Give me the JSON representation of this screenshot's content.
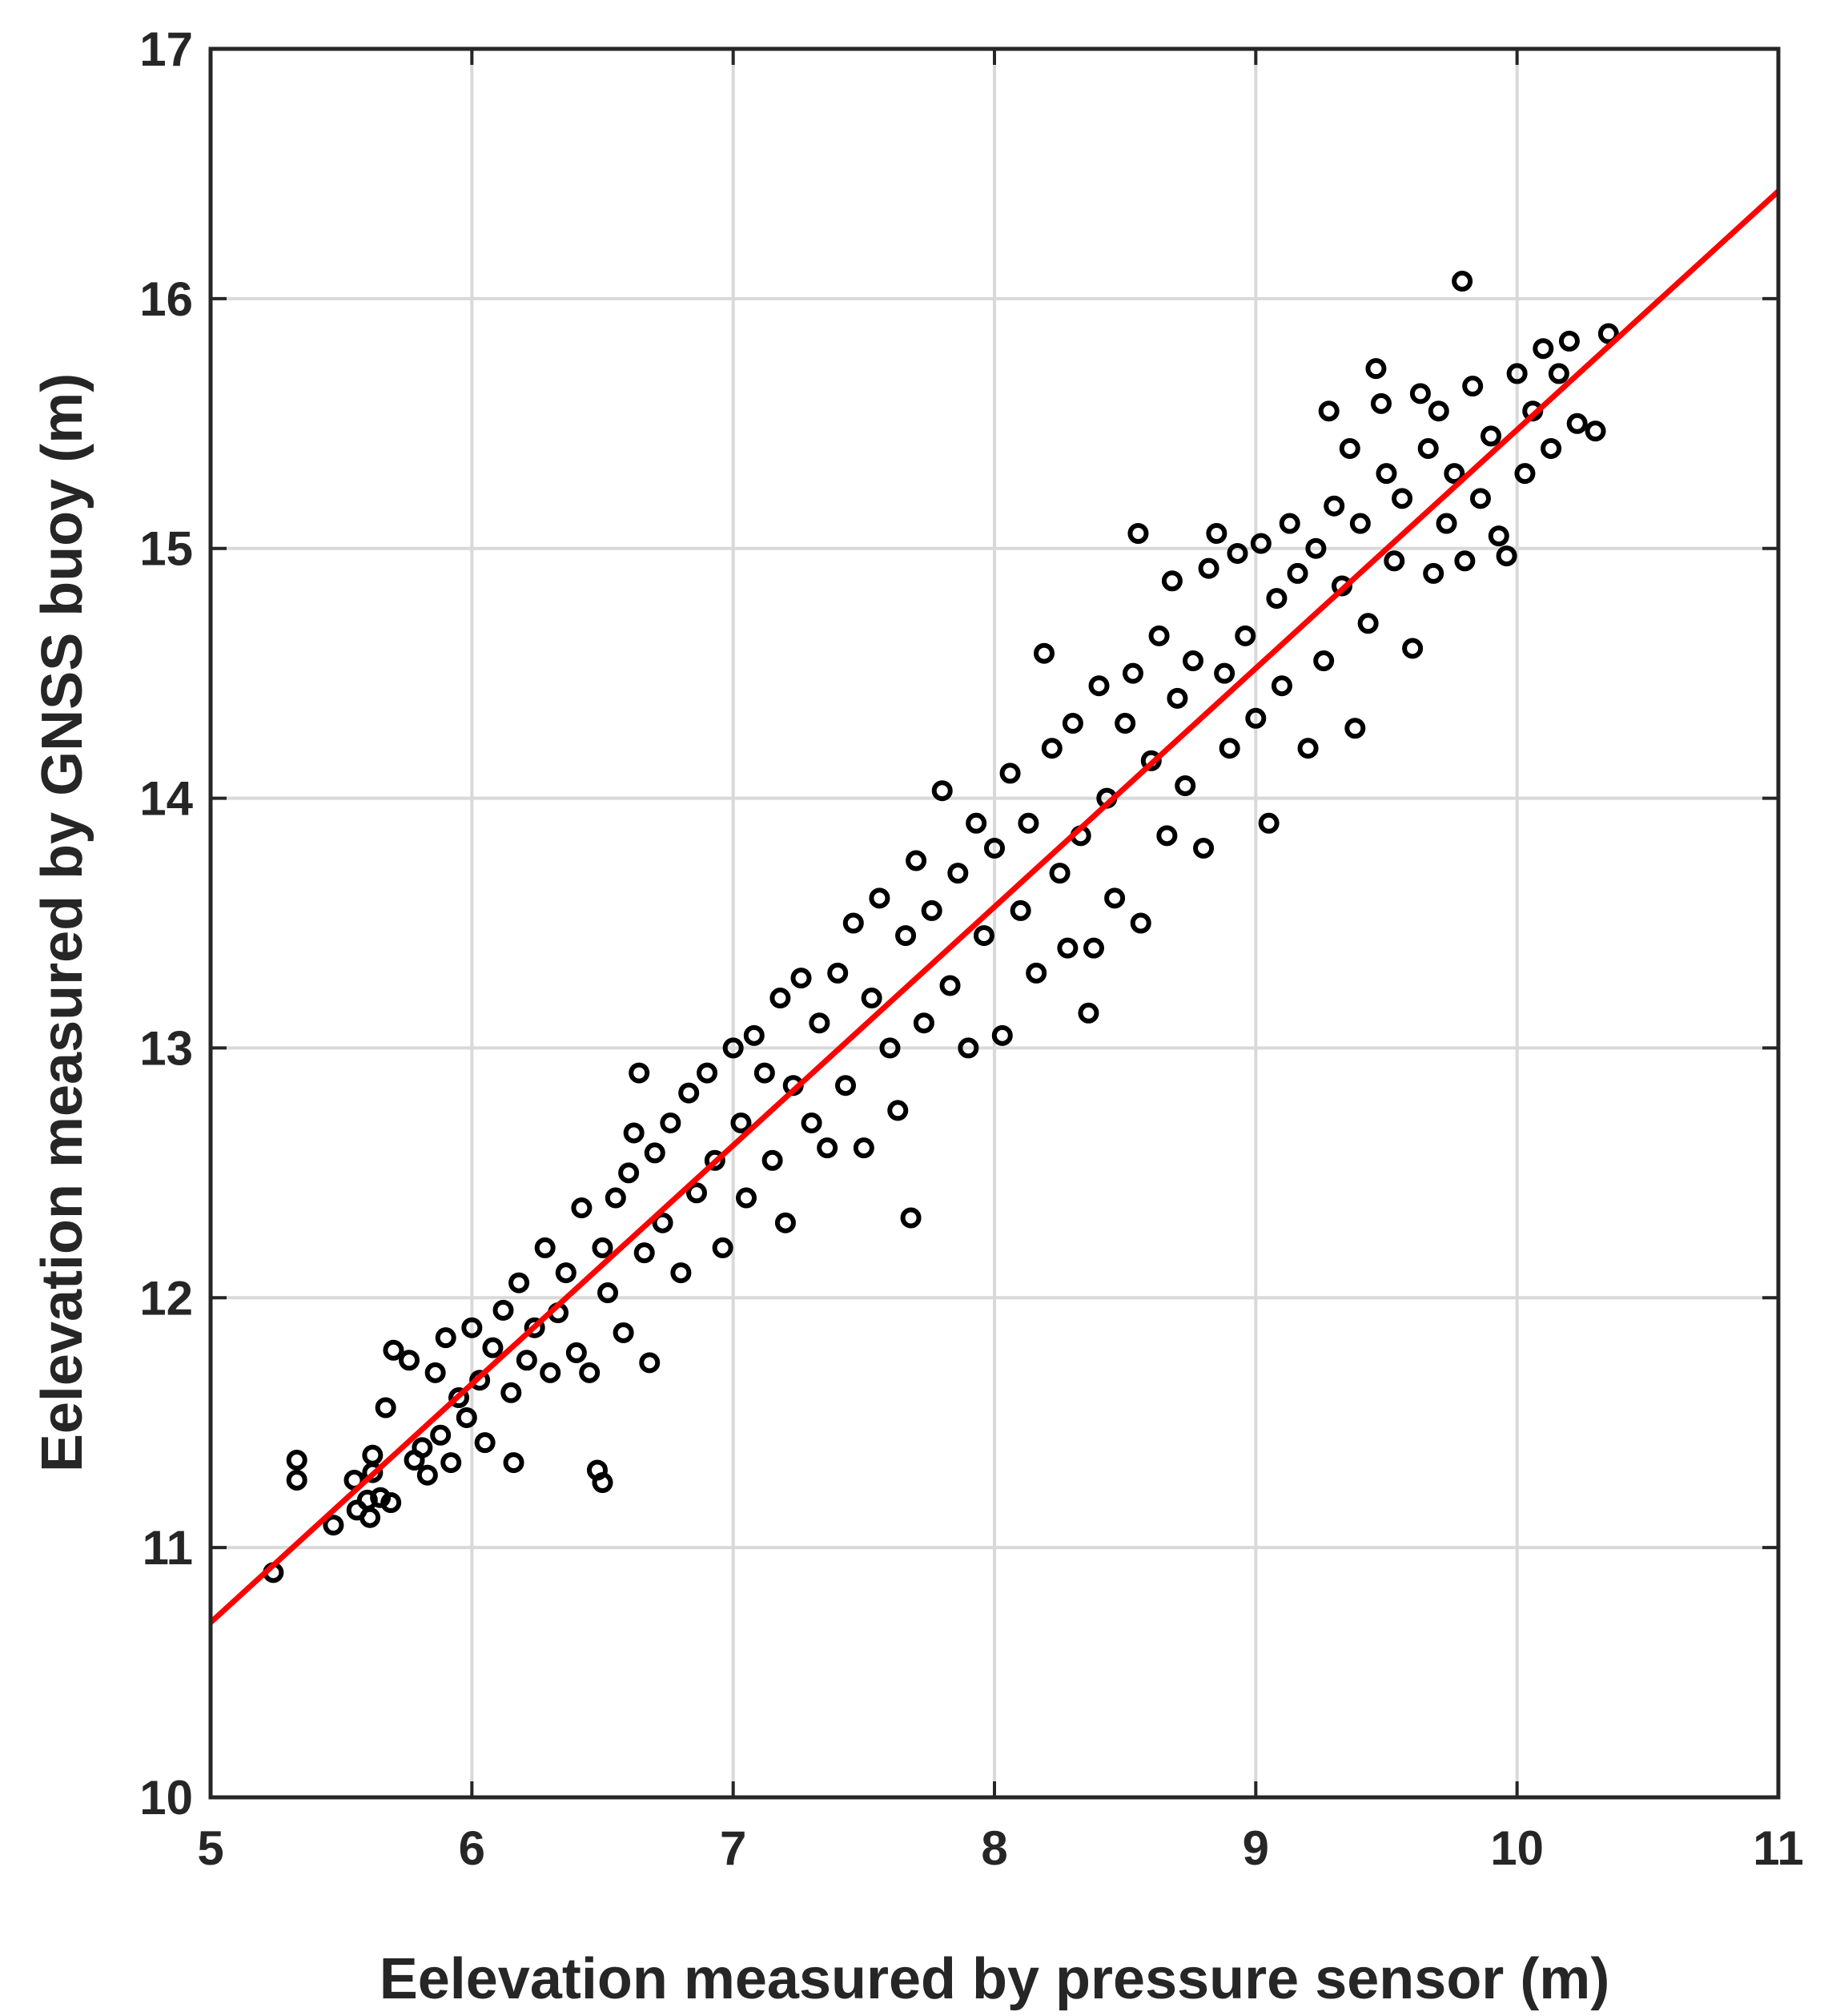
{
  "chart_data": {
    "type": "scatter",
    "title": "",
    "xlabel": "Eelevation measured by pressure sensor (m)",
    "ylabel": "Eelevation measured by GNSS buoy (m)",
    "xlim": [
      5,
      11
    ],
    "ylim": [
      10,
      17
    ],
    "x_ticks": [
      "5",
      "6",
      "7",
      "8",
      "9",
      "10",
      "11"
    ],
    "y_ticks": [
      "10",
      "11",
      "12",
      "13",
      "14",
      "15",
      "16",
      "17"
    ],
    "grid": true,
    "legend": "none",
    "marker": "open-circle",
    "colors": {
      "points": "#000000",
      "fit_line": "#ff0000",
      "grid": "#d9d9d9",
      "axes": "#262626"
    },
    "series": [
      {
        "style": "scatter",
        "points": [
          [
            5.24,
            10.9
          ],
          [
            5.33,
            11.35
          ],
          [
            5.33,
            11.27
          ],
          [
            5.47,
            11.09
          ],
          [
            5.55,
            11.27
          ],
          [
            5.56,
            11.15
          ],
          [
            5.6,
            11.19
          ],
          [
            5.61,
            11.12
          ],
          [
            5.62,
            11.37
          ],
          [
            5.62,
            11.3
          ],
          [
            5.65,
            11.2
          ],
          [
            5.67,
            11.56
          ],
          [
            5.69,
            11.18
          ],
          [
            5.7,
            11.79
          ],
          [
            5.76,
            11.75
          ],
          [
            5.78,
            11.35
          ],
          [
            5.81,
            11.4
          ],
          [
            5.83,
            11.29
          ],
          [
            5.86,
            11.7
          ],
          [
            5.88,
            11.45
          ],
          [
            5.9,
            11.84
          ],
          [
            5.92,
            11.34
          ],
          [
            5.95,
            11.6
          ],
          [
            5.98,
            11.52
          ],
          [
            6.0,
            11.88
          ],
          [
            6.03,
            11.67
          ],
          [
            6.05,
            11.42
          ],
          [
            6.08,
            11.8
          ],
          [
            6.12,
            11.95
          ],
          [
            6.15,
            11.62
          ],
          [
            6.16,
            11.34
          ],
          [
            6.18,
            12.06
          ],
          [
            6.21,
            11.75
          ],
          [
            6.24,
            11.88
          ],
          [
            6.28,
            12.2
          ],
          [
            6.3,
            11.7
          ],
          [
            6.33,
            11.94
          ],
          [
            6.36,
            12.1
          ],
          [
            6.4,
            11.78
          ],
          [
            6.42,
            12.36
          ],
          [
            6.45,
            11.7
          ],
          [
            6.48,
            11.31
          ],
          [
            6.5,
            11.26
          ],
          [
            6.5,
            12.2
          ],
          [
            6.52,
            12.02
          ],
          [
            6.55,
            12.4
          ],
          [
            6.58,
            11.86
          ],
          [
            6.6,
            12.5
          ],
          [
            6.62,
            12.66
          ],
          [
            6.64,
            12.9
          ],
          [
            6.66,
            12.18
          ],
          [
            6.68,
            11.74
          ],
          [
            6.7,
            12.58
          ],
          [
            6.73,
            12.3
          ],
          [
            6.76,
            12.7
          ],
          [
            6.8,
            12.1
          ],
          [
            6.83,
            12.82
          ],
          [
            6.86,
            12.42
          ],
          [
            6.9,
            12.9
          ],
          [
            6.93,
            12.55
          ],
          [
            6.96,
            12.2
          ],
          [
            7.0,
            13.0
          ],
          [
            7.03,
            12.7
          ],
          [
            7.05,
            12.4
          ],
          [
            7.08,
            13.05
          ],
          [
            7.12,
            12.9
          ],
          [
            7.15,
            12.55
          ],
          [
            7.18,
            13.2
          ],
          [
            7.2,
            12.3
          ],
          [
            7.23,
            12.85
          ],
          [
            7.26,
            13.28
          ],
          [
            7.3,
            12.7
          ],
          [
            7.33,
            13.1
          ],
          [
            7.36,
            12.6
          ],
          [
            7.4,
            13.3
          ],
          [
            7.43,
            12.85
          ],
          [
            7.46,
            13.5
          ],
          [
            7.5,
            12.6
          ],
          [
            7.53,
            13.2
          ],
          [
            7.56,
            13.6
          ],
          [
            7.6,
            13.0
          ],
          [
            7.63,
            12.75
          ],
          [
            7.66,
            13.45
          ],
          [
            7.68,
            12.32
          ],
          [
            7.7,
            13.75
          ],
          [
            7.73,
            13.1
          ],
          [
            7.76,
            13.55
          ],
          [
            7.8,
            14.03
          ],
          [
            7.83,
            13.25
          ],
          [
            7.86,
            13.7
          ],
          [
            7.9,
            13.0
          ],
          [
            7.93,
            13.9
          ],
          [
            7.96,
            13.45
          ],
          [
            8.0,
            13.8
          ],
          [
            8.03,
            13.05
          ],
          [
            8.06,
            14.1
          ],
          [
            8.1,
            13.55
          ],
          [
            8.13,
            13.9
          ],
          [
            8.16,
            13.3
          ],
          [
            8.19,
            14.58
          ],
          [
            8.22,
            14.2
          ],
          [
            8.25,
            13.7
          ],
          [
            8.28,
            13.4
          ],
          [
            8.3,
            14.3
          ],
          [
            8.33,
            13.85
          ],
          [
            8.36,
            13.14
          ],
          [
            8.38,
            13.4
          ],
          [
            8.4,
            14.45
          ],
          [
            8.43,
            14.0
          ],
          [
            8.46,
            13.6
          ],
          [
            8.5,
            14.3
          ],
          [
            8.53,
            14.5
          ],
          [
            8.55,
            15.06
          ],
          [
            8.56,
            13.5
          ],
          [
            8.6,
            14.15
          ],
          [
            8.63,
            14.65
          ],
          [
            8.66,
            13.85
          ],
          [
            8.68,
            14.87
          ],
          [
            8.7,
            14.4
          ],
          [
            8.73,
            14.05
          ],
          [
            8.76,
            14.55
          ],
          [
            8.8,
            13.8
          ],
          [
            8.82,
            14.92
          ],
          [
            8.85,
            15.06
          ],
          [
            8.88,
            14.5
          ],
          [
            8.9,
            14.2
          ],
          [
            8.93,
            14.98
          ],
          [
            8.96,
            14.65
          ],
          [
            9.0,
            14.32
          ],
          [
            9.02,
            15.02
          ],
          [
            9.05,
            13.9
          ],
          [
            9.08,
            14.8
          ],
          [
            9.1,
            14.45
          ],
          [
            9.13,
            15.1
          ],
          [
            9.16,
            14.9
          ],
          [
            9.2,
            14.2
          ],
          [
            9.23,
            15.0
          ],
          [
            9.26,
            14.55
          ],
          [
            9.28,
            15.55
          ],
          [
            9.3,
            15.17
          ],
          [
            9.33,
            14.85
          ],
          [
            9.36,
            15.4
          ],
          [
            9.38,
            14.28
          ],
          [
            9.4,
            15.1
          ],
          [
            9.43,
            14.7
          ],
          [
            9.46,
            15.72
          ],
          [
            9.48,
            15.58
          ],
          [
            9.5,
            15.3
          ],
          [
            9.53,
            14.95
          ],
          [
            9.56,
            15.2
          ],
          [
            9.6,
            14.6
          ],
          [
            9.63,
            15.62
          ],
          [
            9.66,
            15.4
          ],
          [
            9.68,
            14.9
          ],
          [
            9.7,
            15.55
          ],
          [
            9.73,
            15.1
          ],
          [
            9.76,
            15.3
          ],
          [
            9.79,
            16.07
          ],
          [
            9.8,
            14.95
          ],
          [
            9.83,
            15.65
          ],
          [
            9.86,
            15.2
          ],
          [
            9.9,
            15.45
          ],
          [
            9.93,
            15.05
          ],
          [
            9.96,
            14.97
          ],
          [
            10.0,
            15.7
          ],
          [
            10.03,
            15.3
          ],
          [
            10.06,
            15.55
          ],
          [
            10.1,
            15.8
          ],
          [
            10.13,
            15.4
          ],
          [
            10.16,
            15.7
          ],
          [
            10.2,
            15.83
          ],
          [
            10.23,
            15.5
          ],
          [
            10.3,
            15.47
          ],
          [
            10.35,
            15.86
          ]
        ]
      },
      {
        "style": "line",
        "points": [
          [
            5.0,
            10.7
          ],
          [
            11.0,
            16.43
          ]
        ]
      }
    ]
  }
}
